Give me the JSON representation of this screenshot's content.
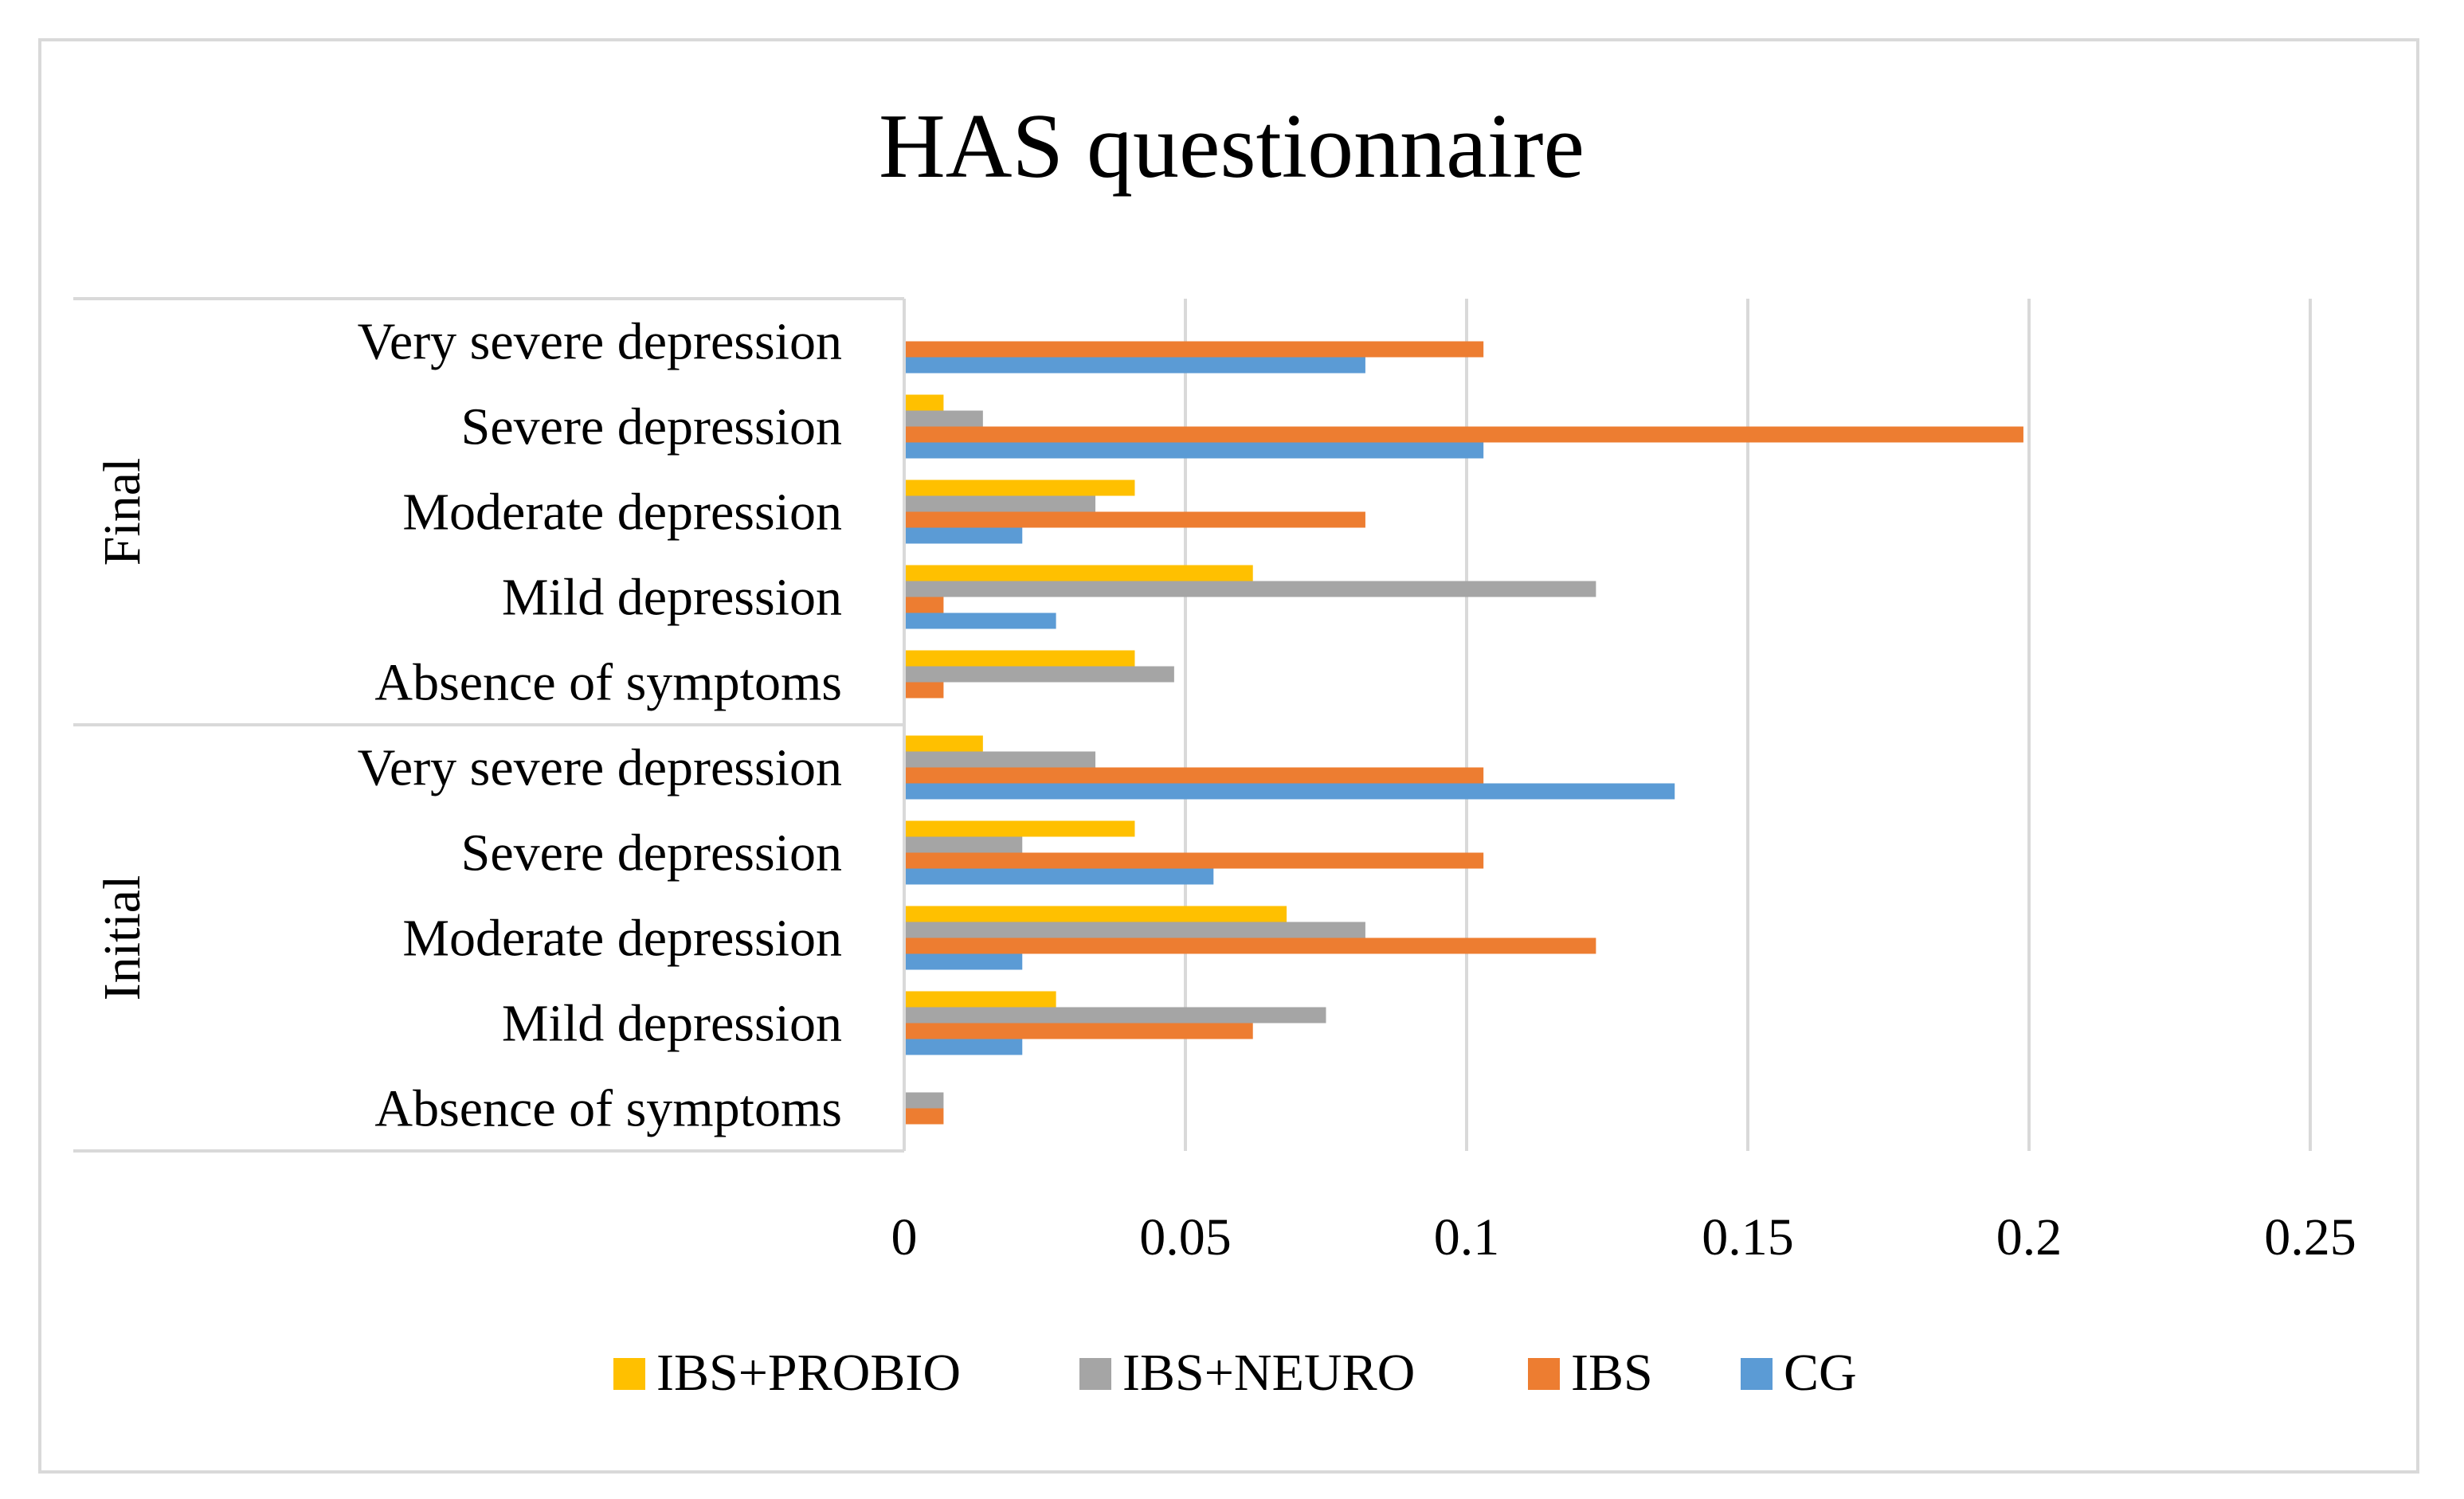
{
  "chart_data": {
    "type": "bar",
    "orientation": "horizontal",
    "title": "HAS questionnaire",
    "xlabel": "",
    "ylabel": "",
    "xlim": [
      0,
      0.25
    ],
    "x_ticks": [
      "0",
      "0.05",
      "0.1",
      "0.15",
      "0.2",
      "0.25"
    ],
    "grid": true,
    "legend_position": "bottom",
    "groups": [
      {
        "label": "Initial",
        "categories": [
          "Absence of symptoms",
          "Mild depression",
          "Moderate depression",
          "Severe depression",
          "Very severe depression"
        ]
      },
      {
        "label": "Final",
        "categories": [
          "Absence of symptoms",
          "Mild depression",
          "Moderate depression",
          "Severe depression",
          "Very severe depression"
        ]
      }
    ],
    "series": [
      {
        "name": "CG",
        "color": "#5B9BD5",
        "values": [
          0,
          0.021,
          0.021,
          0.055,
          0.137,
          0,
          0.027,
          0.021,
          0.103,
          0.082
        ]
      },
      {
        "name": "IBS",
        "color": "#ED7D31",
        "values": [
          0.007,
          0.062,
          0.123,
          0.103,
          0.103,
          0.007,
          0.007,
          0.082,
          0.199,
          0.103
        ]
      },
      {
        "name": "IBS+NEURO",
        "color": "#A5A5A5",
        "values": [
          0.007,
          0.075,
          0.082,
          0.021,
          0.034,
          0.048,
          0.123,
          0.034,
          0.014,
          0
        ]
      },
      {
        "name": "IBS+PROBIO",
        "color": "#FFC000",
        "values": [
          0,
          0.027,
          0.068,
          0.041,
          0.014,
          0.041,
          0.062,
          0.041,
          0.007,
          0
        ]
      }
    ],
    "legend_order": [
      "IBS+PROBIO",
      "IBS+NEURO",
      "IBS",
      "CG"
    ]
  }
}
